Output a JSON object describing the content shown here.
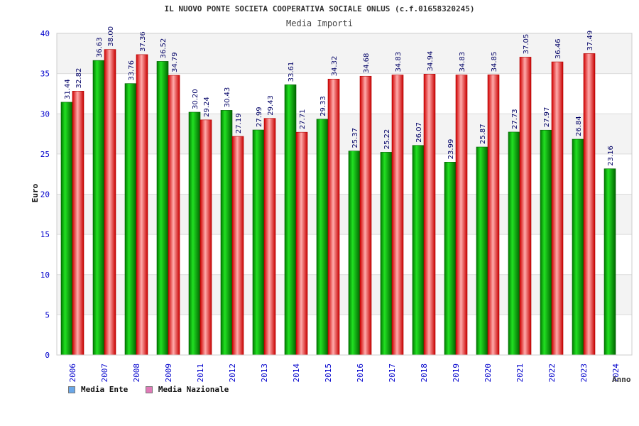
{
  "header": {
    "title": "IL NUOVO PONTE SOCIETA COOPERATIVA SOCIALE ONLUS (c.f.01658320245)",
    "subtitle": "Media Importi"
  },
  "legend": {
    "items": [
      {
        "label": "Media Ente",
        "color": "#6aa7e8"
      },
      {
        "label": "Media Nazionale",
        "color": "#e07ab8"
      }
    ]
  },
  "chart_data": {
    "type": "bar",
    "title": "Media Importi",
    "xlabel": "Anno",
    "ylabel": "Euro",
    "ylim": [
      0,
      40
    ],
    "yticks": [
      0,
      5,
      10,
      15,
      20,
      25,
      30,
      35,
      40
    ],
    "grid": true,
    "legend_position": "bottom-left",
    "categories": [
      "2006",
      "2007",
      "2008",
      "2009",
      "2011",
      "2012",
      "2013",
      "2014",
      "2015",
      "2016",
      "2017",
      "2018",
      "2019",
      "2020",
      "2021",
      "2022",
      "2023",
      "2024"
    ],
    "series": [
      {
        "name": "Media Ente",
        "color": "#00b000",
        "values": [
          31.44,
          36.63,
          33.76,
          36.52,
          30.2,
          30.43,
          27.99,
          33.61,
          29.33,
          25.37,
          25.22,
          26.07,
          23.99,
          25.87,
          27.73,
          27.97,
          26.84,
          23.16
        ],
        "labels": [
          "31.44",
          "36.63",
          "33.76",
          "36.52",
          "30.20",
          "30.43",
          "27.99",
          "33.61",
          "29.33",
          "25.37",
          "25.22",
          "26.07",
          "23.99",
          "25.87",
          "27.73",
          "27.97",
          "26.84",
          "23.16"
        ]
      },
      {
        "name": "Media Nazionale",
        "color": "#e80000",
        "values": [
          32.82,
          38.0,
          37.36,
          34.79,
          29.24,
          27.19,
          29.43,
          27.71,
          34.32,
          34.68,
          34.83,
          34.94,
          34.83,
          34.85,
          37.05,
          36.46,
          37.49,
          null
        ],
        "labels": [
          "32.82",
          "38.00",
          "37.36",
          "34.79",
          "29.24",
          "27.19",
          "29.43",
          "27.71",
          "34.32",
          "34.68",
          "34.83",
          "34.94",
          "34.83",
          "34.85",
          "37.05",
          "36.46",
          "37.49",
          null
        ]
      }
    ]
  }
}
